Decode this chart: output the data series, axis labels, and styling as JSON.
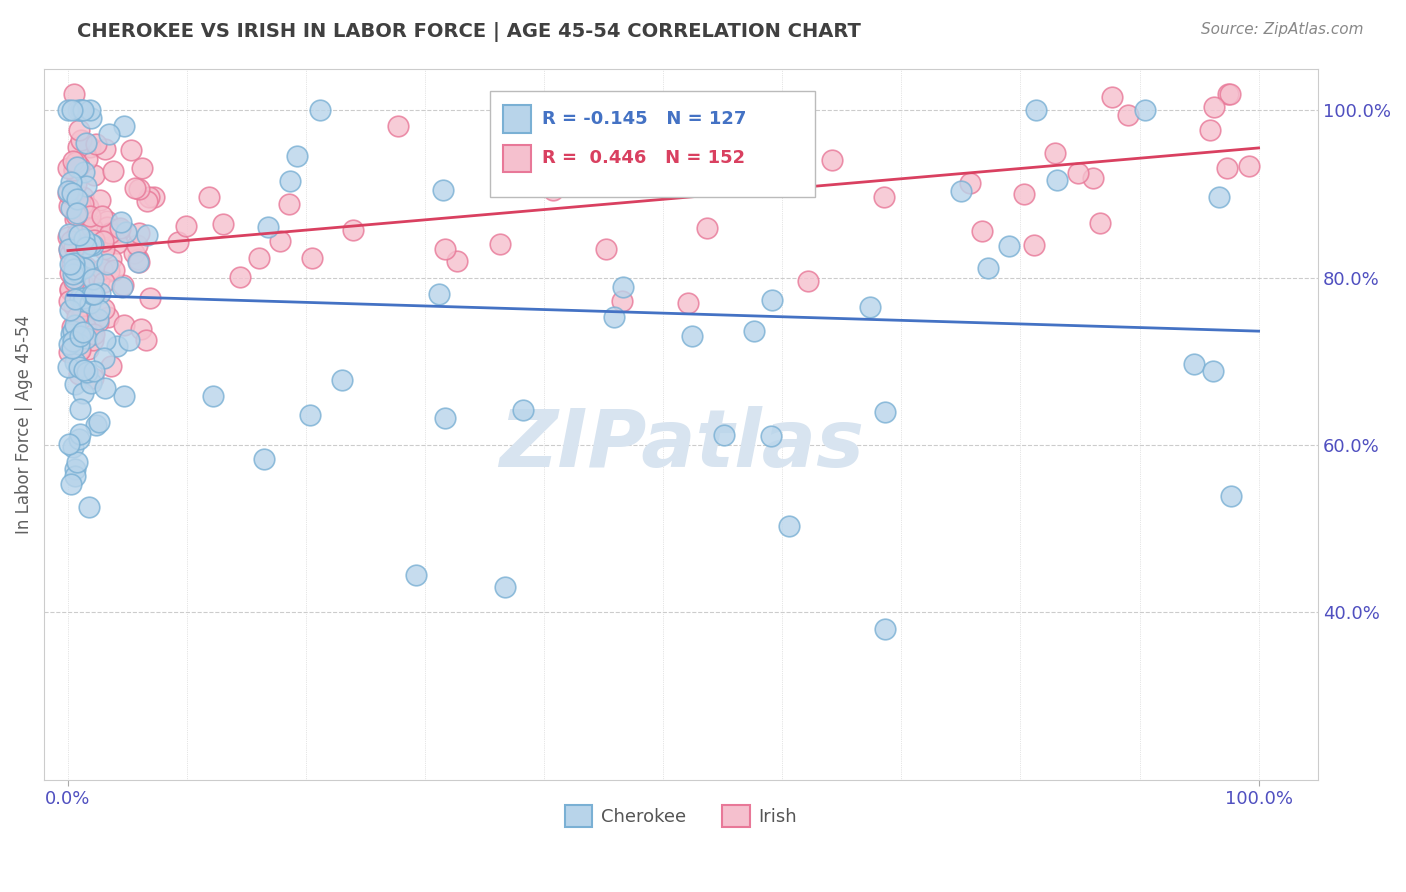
{
  "title": "CHEROKEE VS IRISH IN LABOR FORCE | AGE 45-54 CORRELATION CHART",
  "source_text": "Source: ZipAtlas.com",
  "ylabel": "In Labor Force | Age 45-54",
  "right_yticks": [
    0.4,
    0.6,
    0.8,
    1.0
  ],
  "right_yticklabels": [
    "40.0%",
    "60.0%",
    "80.0%",
    "100.0%"
  ],
  "xticklabels": [
    "0.0%",
    "100.0%"
  ],
  "cherokee_R": -0.145,
  "cherokee_N": 127,
  "irish_R": 0.446,
  "irish_N": 152,
  "cherokee_color": "#b8d4ea",
  "cherokee_edge": "#7ab0d4",
  "irish_color": "#f5c0ce",
  "irish_edge": "#e87898",
  "cherokee_line_color": "#4472c4",
  "irish_line_color": "#d94060",
  "background_color": "#ffffff",
  "title_color": "#404040",
  "source_color": "#888888",
  "grid_color": "#cccccc",
  "watermark_color": "#d8e4f0",
  "tick_color": "#5050c0",
  "ylim_min": 0.2,
  "ylim_max": 1.05,
  "xlim_min": -0.02,
  "xlim_max": 1.05
}
